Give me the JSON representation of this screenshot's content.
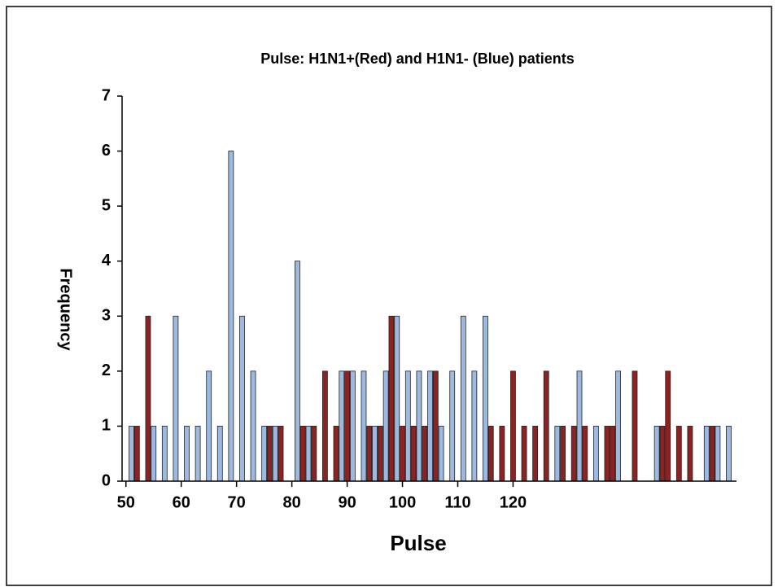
{
  "chart_data": {
    "type": "bar",
    "title": "Pulse: H1N1+(Red) and H1N1- (Blue) patients",
    "x_label": "Pulse",
    "y_label": "Frequency",
    "xlim": [
      49.3,
      160.4
    ],
    "xticks": [
      50,
      60,
      70,
      80,
      90,
      100,
      110,
      120
    ],
    "ylim": [
      0,
      7
    ],
    "yticks": [
      0,
      1,
      2,
      3,
      4,
      5,
      6,
      7
    ],
    "series": [
      {
        "color": "#9db9e0",
        "x": [
          51,
          55,
          57,
          59,
          61,
          63,
          65,
          67,
          69,
          71,
          73,
          75,
          77,
          81,
          83,
          89,
          91,
          93,
          95,
          97,
          99,
          101,
          103,
          105,
          107,
          109,
          111,
          113,
          115,
          128,
          132,
          135,
          139,
          146,
          155,
          157,
          159
        ],
        "values": [
          1,
          1,
          1,
          3,
          1,
          1,
          2,
          1,
          6,
          3,
          2,
          1,
          1,
          4,
          1,
          2,
          2,
          2,
          1,
          2,
          3,
          2,
          2,
          2,
          1,
          2,
          3,
          2,
          3,
          1,
          2,
          1,
          2,
          1,
          1,
          1,
          1
        ]
      },
      {
        "color": "#8b2323",
        "x": [
          52,
          54,
          76,
          78,
          82,
          84,
          86,
          88,
          90,
          94,
          96,
          98,
          100,
          102,
          104,
          106,
          116,
          118,
          120,
          122,
          124,
          126,
          129,
          131,
          133,
          137,
          138,
          142,
          147,
          148,
          150,
          152,
          156
        ],
        "values": [
          1,
          3,
          1,
          1,
          1,
          1,
          2,
          1,
          2,
          1,
          1,
          3,
          1,
          1,
          1,
          2,
          1,
          1,
          2,
          1,
          1,
          2,
          1,
          1,
          1,
          1,
          1,
          2,
          1,
          2,
          1,
          1,
          1
        ]
      }
    ]
  }
}
